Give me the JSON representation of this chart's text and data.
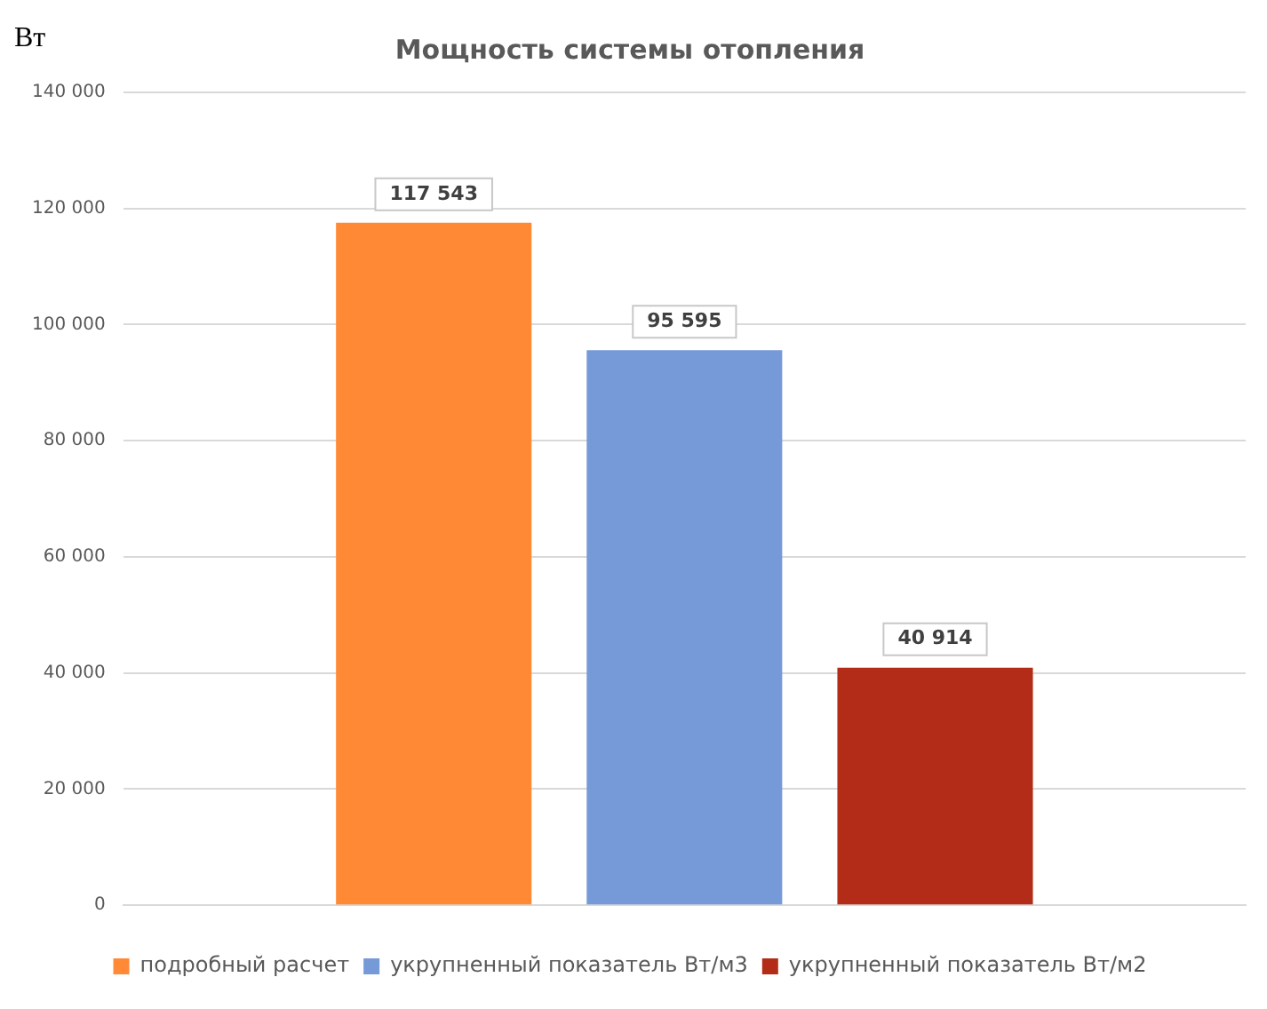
{
  "chart_data": {
    "type": "bar",
    "title": "Мощность системы отопления",
    "ylabel": "Вт",
    "categories": [
      null
    ],
    "series": [
      {
        "name": "подробный расчет",
        "color": "#ff8935",
        "values": [
          117543
        ],
        "value_labels": [
          "117 543"
        ]
      },
      {
        "name": "укрупненный показатель Вт/м3",
        "color": "#7699d8",
        "values": [
          95595
        ],
        "value_labels": [
          "95 595"
        ]
      },
      {
        "name": "укрупненный показатель Вт/м2",
        "color": "#b32c17",
        "values": [
          40914
        ],
        "value_labels": [
          "40 914"
        ]
      }
    ],
    "ylim": [
      0,
      140000
    ],
    "yticks": [
      {
        "value": 0,
        "label": "0"
      },
      {
        "value": 20000,
        "label": "20 000"
      },
      {
        "value": 40000,
        "label": "40 000"
      },
      {
        "value": 60000,
        "label": "60 000"
      },
      {
        "value": 80000,
        "label": "80 000"
      },
      {
        "value": 100000,
        "label": "100 000"
      },
      {
        "value": 120000,
        "label": "120 000"
      },
      {
        "value": 140000,
        "label": "140 000"
      }
    ],
    "grid": "y",
    "legend": "bottom"
  }
}
